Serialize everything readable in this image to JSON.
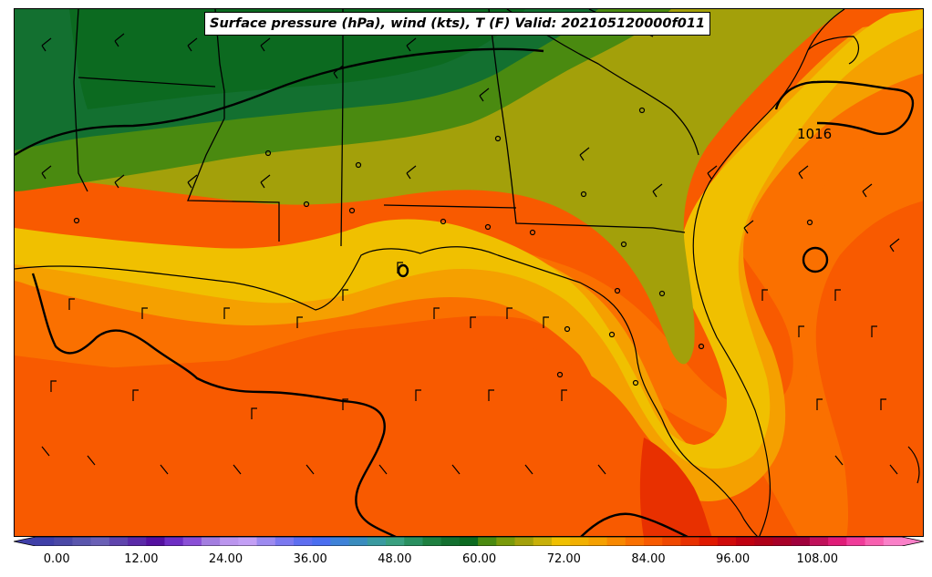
{
  "title": "Surface pressure (hPa), wind (kts), T (F) Valid: 202105120000f011",
  "isobar_labels": [
    "1016"
  ],
  "colorbar": {
    "min": -3,
    "max": 120,
    "ticks": [
      "0.00",
      "12.00",
      "24.00",
      "36.00",
      "48.00",
      "60.00",
      "72.00",
      "84.00",
      "96.00",
      "108.00"
    ],
    "colors": [
      "#3f3fa8",
      "#4a48a6",
      "#5a56ad",
      "#6a60b6",
      "#5f44ad",
      "#5a2aa8",
      "#5410a0",
      "#6e2ec4",
      "#8a4fd6",
      "#a37de0",
      "#bb95ee",
      "#c39ff5",
      "#9d8af0",
      "#7b78f0",
      "#5e6ef0",
      "#4a6ef0",
      "#3e82d8",
      "#3a8cbe",
      "#3a9aa0",
      "#3aa080",
      "#2a9060",
      "#1e8040",
      "#137030",
      "#0c6a20",
      "#4a8a10",
      "#7a9a0a",
      "#a3a00a",
      "#c8b008",
      "#f0c000",
      "#f2b000",
      "#f5a000",
      "#f88800",
      "#fa7000",
      "#f85a00",
      "#f04800",
      "#e83000",
      "#e01800",
      "#d00a0a",
      "#c00010",
      "#b00018",
      "#a80028",
      "#a0003c",
      "#c0105a",
      "#e01c78",
      "#f03c9a",
      "#f860b0",
      "#fa80c8"
    ]
  },
  "map": {
    "regions_approx_temp_f": {
      "north_interior": 58,
      "piedmont": 64,
      "coast_band": 70,
      "gulf": 76,
      "south_gulf": 80,
      "atlantic": 78
    }
  }
}
